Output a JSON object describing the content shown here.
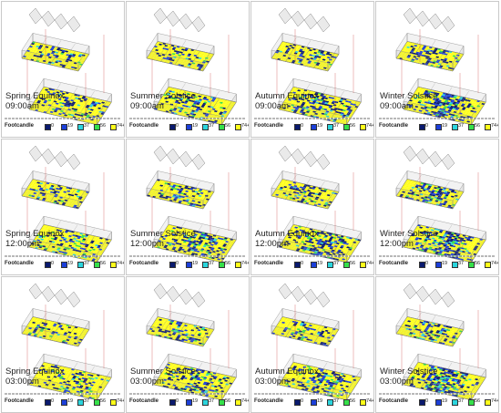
{
  "legend": {
    "title": "Footcandle",
    "levels": [
      {
        "label": "0",
        "color": "#0a1a6e"
      },
      {
        "label": "19",
        "color": "#1c3fd8"
      },
      {
        "label": "37",
        "color": "#2bd5dd"
      },
      {
        "label": "56",
        "color": "#35e04a"
      },
      {
        "label": "74+",
        "color": "#ffff1a"
      }
    ]
  },
  "panels": [
    {
      "season": "Spring Equinox",
      "time": "09:00am"
    },
    {
      "season": "Summer Solstice",
      "time": "09:00am"
    },
    {
      "season": "Autumn Equinox",
      "time": "09:00am"
    },
    {
      "season": "Winter Solstice",
      "time": "09:00am"
    },
    {
      "season": "Spring Equinox",
      "time": "12:00pm"
    },
    {
      "season": "Summer Solstice",
      "time": "12:00pm"
    },
    {
      "season": "Autumn Equinox",
      "time": "12:00pm"
    },
    {
      "season": "Winter Solstice",
      "time": "12:00pm"
    },
    {
      "season": "Spring Equinox",
      "time": "03:00pm"
    },
    {
      "season": "Summer Solstice",
      "time": "03:00pm"
    },
    {
      "season": "Autumn Equinox",
      "time": "03:00pm"
    },
    {
      "season": "Winter Solstice",
      "time": "03:00pm"
    }
  ]
}
